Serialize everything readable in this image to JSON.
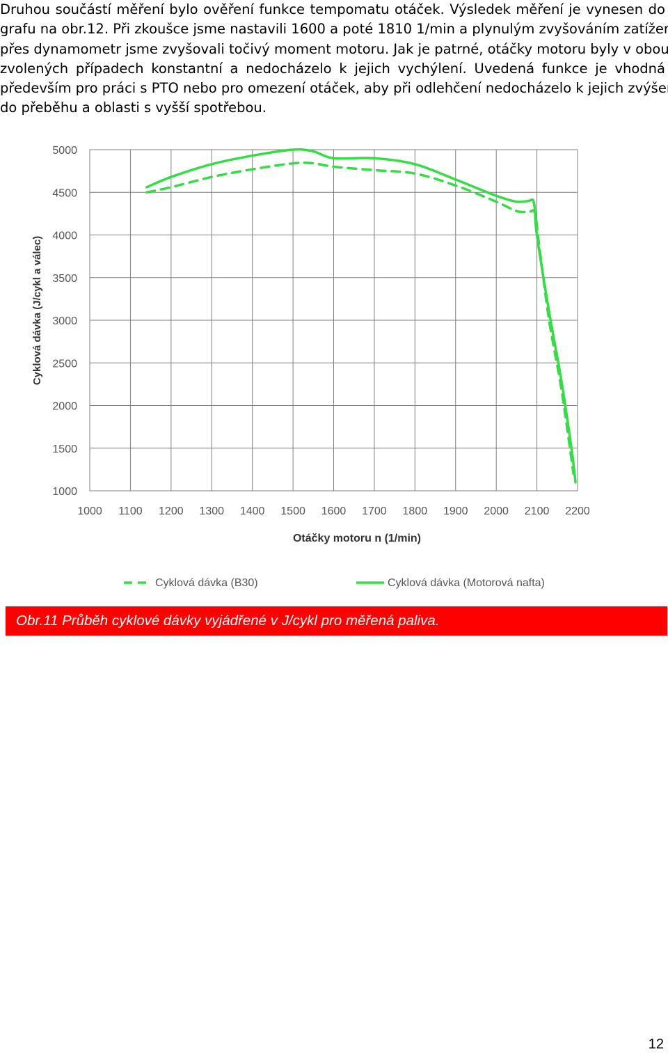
{
  "paragraph": {
    "lines": [
      "Druhou součástí měření bylo ověření funkce tempomatu otáček. Výsledek měření je vynesen do",
      "grafu na obr.12. Při zkoušce jsme nastavili 1600 a poté 1810 1/min a plynulým zvyšováním zatížení",
      "přes dynamometr jsme zvyšovali točivý moment motoru. Jak je patrné, otáčky motoru byly v obou",
      "zvolených případech konstantní a nedocházelo k jejich vychýlení. Uvedená funkce je vhodná",
      "především pro práci s PTO nebo pro omezení otáček, aby při odlehčení nedocházelo k jejich zvýšení",
      "do přeběhu a oblasti s vyšší spotřebou."
    ]
  },
  "chart_data": {
    "type": "line",
    "xlabel": "Otáčky motoru n (1/min)",
    "ylabel": "Cyklová dávka (J/cykl a válec)",
    "xlim": [
      1000,
      2200
    ],
    "ylim": [
      1000,
      5000
    ],
    "x_ticks": [
      "1000",
      "1100",
      "1200",
      "1300",
      "1400",
      "1500",
      "1600",
      "1700",
      "1800",
      "1900",
      "2000",
      "2100",
      "2200"
    ],
    "y_ticks": [
      "1000",
      "1500",
      "2000",
      "2500",
      "3000",
      "3500",
      "4000",
      "4500",
      "5000"
    ],
    "grid": true,
    "legend_position": "bottom",
    "colors": {
      "line": "#33dd44",
      "grid": "#7f7f7f"
    },
    "series": [
      {
        "name": "Cyklová dávka (B30)",
        "style": "dashed",
        "x": [
          1140,
          1200,
          1300,
          1400,
          1500,
          1550,
          1600,
          1700,
          1800,
          1900,
          2000,
          2050,
          2080,
          2095,
          2105,
          2130,
          2160,
          2190
        ],
        "y": [
          4500,
          4560,
          4680,
          4770,
          4840,
          4840,
          4800,
          4760,
          4720,
          4580,
          4390,
          4280,
          4270,
          4260,
          3900,
          3000,
          2200,
          1200
        ]
      },
      {
        "name": "Cyklová dávka (Motorová nafta)",
        "style": "solid",
        "x": [
          1140,
          1200,
          1300,
          1400,
          1500,
          1550,
          1600,
          1700,
          1800,
          1900,
          2000,
          2050,
          2080,
          2090,
          2095,
          2100,
          2130,
          2160,
          2185,
          2195
        ],
        "y": [
          4560,
          4680,
          4830,
          4930,
          5000,
          4980,
          4900,
          4900,
          4830,
          4650,
          4460,
          4390,
          4400,
          4410,
          4300,
          4000,
          3100,
          2300,
          1500,
          1100
        ]
      }
    ]
  },
  "caption": "Obr.11 Průběh cyklové dávky vyjádřené v J/cykl pro měřená paliva.",
  "page_number": "12"
}
